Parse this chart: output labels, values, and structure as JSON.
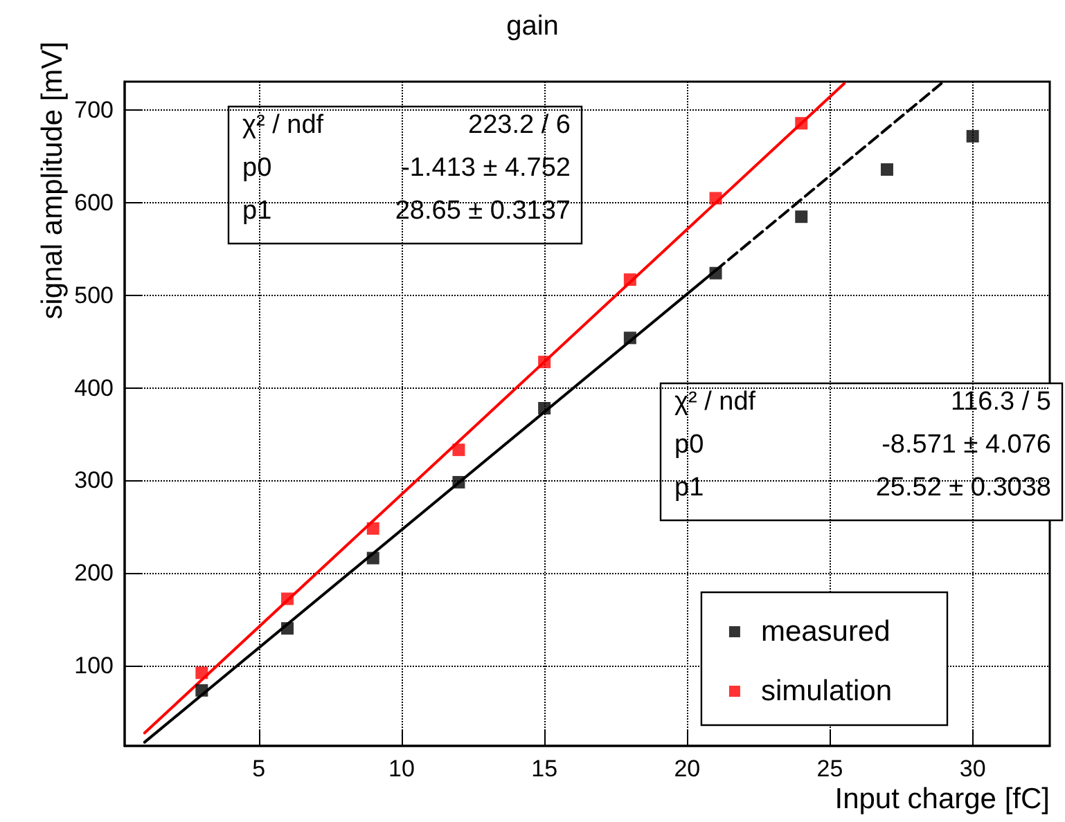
{
  "chart_data": {
    "type": "scatter",
    "title": "gain",
    "xlabel": "Input charge [fC]",
    "ylabel": "signal amplitude [mV]",
    "xlim": [
      0.3,
      32.7
    ],
    "ylim": [
      13,
      731
    ],
    "xticks": [
      5,
      10,
      15,
      20,
      25,
      30
    ],
    "yticks": [
      100,
      200,
      300,
      400,
      500,
      600,
      700
    ],
    "grid": true,
    "legend": "bottom right",
    "marker": "square",
    "series": [
      {
        "name": "measured",
        "color": "#000000",
        "x": [
          3,
          6,
          9,
          12,
          15,
          18,
          21,
          24,
          27,
          30
        ],
        "values": [
          73,
          140,
          216,
          298,
          378,
          454,
          524,
          585,
          636,
          672
        ]
      },
      {
        "name": "simulation",
        "color": "#ff0000",
        "x": [
          3,
          6,
          9,
          12,
          15,
          18,
          21,
          24
        ],
        "values": [
          92,
          172,
          248,
          333,
          428,
          517,
          605,
          686
        ]
      },
      {
        "type": "line",
        "color": "#000000",
        "line_style": "solid",
        "marker": "none",
        "x": [
          1,
          21
        ],
        "values": [
          17,
          527
        ]
      },
      {
        "type": "line",
        "color": "#000000",
        "line_style": "dashed",
        "marker": "none",
        "x": [
          21,
          28.9
        ],
        "values": [
          527,
          729
        ]
      },
      {
        "type": "line",
        "color": "#ff0000",
        "line_style": "solid",
        "marker": "none",
        "x": [
          1,
          25.5
        ],
        "values": [
          27,
          729
        ]
      }
    ],
    "annotations": [
      "χ² / ndf  223.2 / 6",
      "p0  -1.413 ± 4.752",
      "p1  28.65 ± 0.3137",
      "χ² / ndf  116.3 / 5",
      "p0  -8.571 ± 4.076",
      "p1  25.52 ± 0.3038"
    ]
  }
}
